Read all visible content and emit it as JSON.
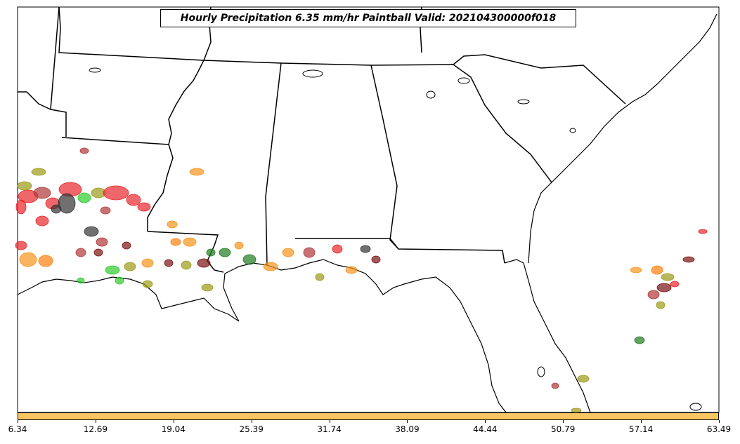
{
  "title": "Hourly Precipitation 6.35 mm/hr Paintball Valid: 202104300000f018",
  "colorbar": {
    "color": "#fdc462",
    "ticks": [
      "6.34",
      "12.69",
      "19.04",
      "25.39",
      "31.74",
      "38.09",
      "44.44",
      "50.79",
      "57.14",
      "63.49"
    ]
  },
  "member_colors": [
    "#e8272b",
    "#f7941d",
    "#1f7a1f",
    "#9c9a18",
    "#7a1212",
    "#2ecc2e",
    "#333333",
    "#b03838",
    "#ff7f0e",
    "#d2691e"
  ]
}
